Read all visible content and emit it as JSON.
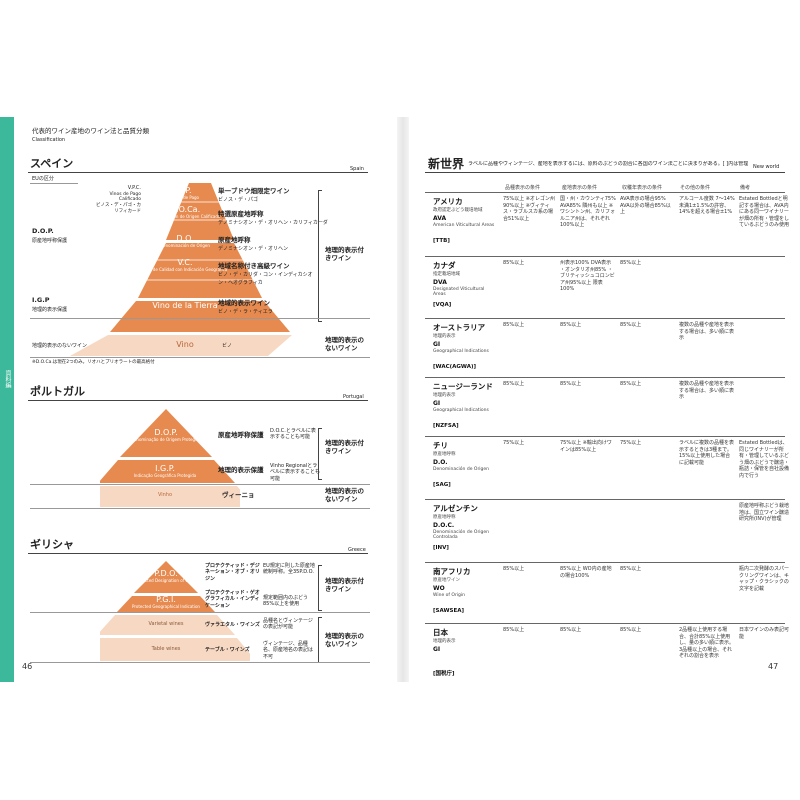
{
  "left_page": {
    "title": "代表的ワイン産地のワイン法と品質分類",
    "subtitle": "Classification",
    "page_number": "46",
    "side_tab": "資料編",
    "spain": {
      "title": "スペイン",
      "en": "Spain",
      "eu_label": "EUの区分",
      "dop": "D.O.P.",
      "dop_jp": "原産地呼称保護",
      "igp": "I.G.P",
      "igp_jp": "地理的表示保護",
      "no_gi": "地理的表示のないワイン",
      "vpc": "V.P.C.",
      "vpc_sub": "Vinos de Pago Calificado",
      "vpc_jp": "ビノス・デ・パゴ・カリフィカード",
      "tiers": [
        {
          "name": "V.P.",
          "sub": "Vinos de Pago",
          "jp": "単一ブドウ畑限定ワイン",
          "jp2": "ビノス・デ・パゴ"
        },
        {
          "name": "D.O.Ca.",
          "sub": "Denominación de Origen Calificada",
          "jp": "特選原産地呼称",
          "jp2": "デノミナシオン・デ・オリヘン・カリフィカーダ"
        },
        {
          "name": "D.O.",
          "sub": "Denominación de Origen",
          "jp": "原産地呼称",
          "jp2": "デノミナシオン・デ・オリヘン"
        },
        {
          "name": "V.C.",
          "sub": "Vino de Calidad con Indicación Geográfica",
          "jp": "地域名称付き高級ワイン",
          "jp2": "ビノ・デ・カリダ・コン・インディカシオン・ヘオグラフィカ"
        },
        {
          "name": "Vino de la Tierra",
          "sub": "",
          "jp": "地域的表示ワイン",
          "jp2": "ビノ・デ・ラ・ティエラ"
        },
        {
          "name": "Vino",
          "sub": "",
          "jp": "ビノ",
          "jp2": ""
        }
      ],
      "with_gi": "地理的表示付きワイン",
      "without_gi": "地理的表示のないワイン",
      "note": "※D.O.Ca.は現在2つのみ。リオハとプリオラートの最高格付"
    },
    "portugal": {
      "title": "ポルトガル",
      "en": "Portugal",
      "tiers": [
        {
          "name": "D.O.P.",
          "sub": "Denominação de Origem Protegida",
          "jp": "原産地呼称保護",
          "note": "D.O.C.とラベルに表示することも可能"
        },
        {
          "name": "I.G.P.",
          "sub": "Indicação Geográfica Protegida",
          "jp": "地理的表示保護",
          "note": "Vinho Regionalとラベルに表示することも可能"
        },
        {
          "name": "Vinho",
          "sub": "",
          "jp": "ヴィーニョ",
          "note": ""
        }
      ],
      "with_gi": "地理的表示付きワイン",
      "without_gi": "地理的表示のないワイン"
    },
    "greece": {
      "title": "ギリシャ",
      "en": "Greece",
      "tiers": [
        {
          "name": "P.D.O.",
          "sub": "Protected Designation of Origin",
          "jp": "プロテクティッド・デジネーション・オブ・オリジン",
          "note": "EU規定に則した原産地統制呼称。全35P.D.O."
        },
        {
          "name": "P.G.I.",
          "sub": "Protected Geographical Indication",
          "jp": "プロテクティッド・ゲオグラフィカル・インディケーション",
          "note": "規定範囲内のぶどう85%以上を使用"
        },
        {
          "name": "Varietal wines",
          "sub": "",
          "jp": "ヴァラエタル・ワインズ",
          "note": "品種名とヴィンテージの表記が可能"
        },
        {
          "name": "Table wines",
          "sub": "",
          "jp": "テーブル・ワインズ",
          "note": "ヴィンテージ、品種名、原産地名の表記は不可"
        }
      ],
      "with_gi": "地理的表示付きワイン",
      "without_gi": "地理的表示のないワイン"
    }
  },
  "right_page": {
    "title": "新世界",
    "intro": "ラベルに品種やヴィンテージ、産地を表示するには、原料のぶどうの割合に各国のワイン法ごとに決まりがある。[ ]内は管理団体",
    "en": "New world",
    "page_number": "47",
    "headers": [
      "品種表示の条件",
      "産地表示の条件",
      "収穫年表示の条件",
      "その他の条件",
      "備考"
    ],
    "rows": [
      {
        "country": "アメリカ",
        "cat_jp": "政府認定ぶどう栽培地域",
        "cat": "AVA",
        "cat_en": "American Viticultural Areas",
        "org": "[TTB]",
        "c1": "75%以上 ※オレゴン州 90%以上 ※ヴィティス・ラブルスカ系の場合51%以上",
        "c2": "国・州・カウンティ75% AVA85% 隣州も以上 ※ワシントン州、カリフォルニア州は、それぞれ100%以上",
        "c3": "AVA表示の場合95% AVA以外の場合85%以上",
        "c4": "アルコール度数 7〜14%未満1±1.5%の許容、14%を超える場合±1%",
        "c5": "Estated Bottledと明記する場合は、AVA内にある同一ワイナリーが畑の所有・管理をしているぶどうのみ使用"
      },
      {
        "country": "カナダ",
        "cat_jp": "指定栽培地域",
        "cat": "DVA",
        "cat_en": "Designated Viticultural Areas",
        "org": "[VQA]",
        "c1": "85%以上",
        "c2": "州表示100% DVA表示 ・オンタリオ州85% ・ブリティッシュコロンビア州95%以上 限表100%",
        "c3": "85%以上",
        "c4": "",
        "c5": ""
      },
      {
        "country": "オーストラリア",
        "cat_jp": "地理的表示",
        "cat": "GI",
        "cat_en": "Geographical Indications",
        "org": "[WAC(AGWA)]",
        "c1": "85%以上",
        "c2": "85%以上",
        "c3": "85%以上",
        "c4": "複数の品種や産地を表示する場合は、多い順に表示",
        "c5": ""
      },
      {
        "country": "ニュージーランド",
        "cat_jp": "地理的表示",
        "cat": "GI",
        "cat_en": "Geographical Indications",
        "org": "[NZFSA]",
        "c1": "85%以上",
        "c2": "85%以上",
        "c3": "85%以上",
        "c4": "複数の品種や産地を表示する場合は、多い順に表示",
        "c5": ""
      },
      {
        "country": "チリ",
        "cat_jp": "原産地呼称",
        "cat": "D.O.",
        "cat_en": "Denominación de Origen",
        "org": "[SAG]",
        "c1": "75%以上",
        "c2": "75%以上 ※輸出向けワインは85%以上",
        "c3": "75%以上",
        "c4": "ラベルに複数の品種を表示するときは3種まで。15%以上使用した場合に記載可能",
        "c5": "Estated Bottledは、同じワイナリーが所有・管理しているぶどう畑のぶどうで醸造・瓶詰・保管を自社設備内で行う"
      },
      {
        "country": "アルゼンチン",
        "cat_jp": "原産地呼称",
        "cat": "D.O.C.",
        "cat_en": "Denominación de Origen Controlada",
        "org": "[INV]",
        "c1": "",
        "c2": "",
        "c3": "",
        "c4": "",
        "c5": "原産地呼称ぶどう栽培地は、国立ワイン醸造研究所(INV)が管理"
      },
      {
        "country": "南アフリカ",
        "cat_jp": "原産地ワイン",
        "cat": "WO",
        "cat_en": "Wine of Origin",
        "org": "[SAWSEA]",
        "c1": "85%以上",
        "c2": "85%以上 WO内の産地の場合100%",
        "c3": "85%以上",
        "c4": "",
        "c5": "瓶内二次発酵のスパークリングワインは、キャップ・クラシックの文字を記載"
      },
      {
        "country": "日本",
        "cat_jp": "地理的表示",
        "cat": "GI",
        "cat_en": "",
        "org": "[国税庁]",
        "c1": "85%以上",
        "c2": "85%以上",
        "c3": "85%以上",
        "c4": "2品種以上使用する場合、合計85%以上使用し、量の多い順に表示。3品種以上の場合、それぞれの割合を表示",
        "c5": "日本ワインのみ表記可能"
      }
    ]
  },
  "colors": {
    "orange": "#e68a4f",
    "light_orange": "#f7d8c2",
    "tab_green": "#3cb89a"
  }
}
